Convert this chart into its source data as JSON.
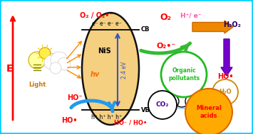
{
  "bg_color": "#ffffff",
  "border_color": "#00cfff",
  "ellipse_color": "#f5d080",
  "ellipse_edge": "#111111",
  "cb_label": "CB",
  "vb_label": "VB",
  "nis_label": "NiS",
  "hv_label": "hv",
  "bandgap_label": "2.4 eV",
  "e_axis_label": "E",
  "light_label": "Light",
  "o2_top_label": "O₂ / O₂•⁻",
  "electrons_label": "e⁻ e⁻ e⁻ e⁻",
  "holes_label": "h⁺ h⁺ h⁺ h⁺",
  "ho_minus_label": "HO⁻",
  "ho_radical_label": "HO•",
  "ho_vb_label": "HO⁻ / HO•",
  "o2_right_label": "O₂",
  "o2_radical_label": "O₂•⁻",
  "h2o2_label": "H₂O₂",
  "ho_right_label": "HO•",
  "h2o_label": "H₂O",
  "co2_label": "CO₂",
  "mineral_label": "Mineral\nacids",
  "organic_label": "Organic\npollutants",
  "hplus_eminus_label": "H⁺/ e⁻"
}
